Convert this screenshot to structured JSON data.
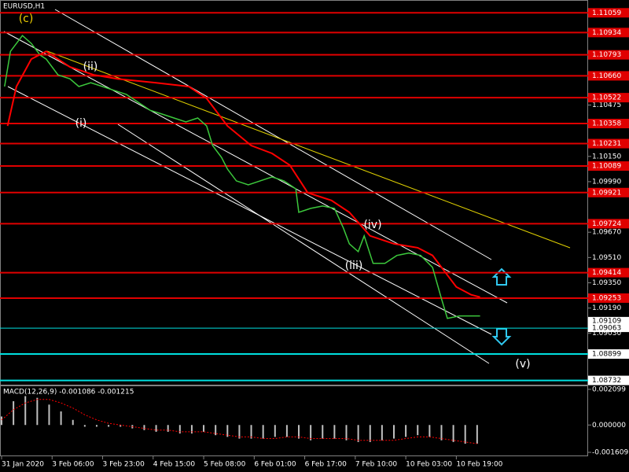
{
  "chart_data": [
    {
      "type": "price",
      "title": "EURUSD,H1",
      "xlim": [
        0,
        197
      ],
      "ylim": [
        1.087,
        1.1114
      ],
      "xticks": [
        {
          "value": 0,
          "label": "31 Jan 2020"
        },
        {
          "value": 17,
          "label": "3 Feb 06:00"
        },
        {
          "value": 34,
          "label": "3 Feb 23:00"
        },
        {
          "value": 51,
          "label": "4 Feb 15:00"
        },
        {
          "value": 68,
          "label": "5 Feb 08:00"
        },
        {
          "value": 85,
          "label": "6 Feb 01:00"
        },
        {
          "value": 102,
          "label": "6 Feb 17:00"
        },
        {
          "value": 119,
          "label": "7 Feb 10:00"
        },
        {
          "value": 136,
          "label": "10 Feb 03:00"
        },
        {
          "value": 153,
          "label": "10 Feb 19:00"
        }
      ],
      "yticks": [
        1.10475,
        {
          "value": 1.1015,
          "label": "1.10150"
        },
        {
          "value": 1.0999,
          "label": "1.09990"
        },
        {
          "value": 1.0967,
          "label": "1.09670"
        },
        {
          "value": 1.0951,
          "label": "1.09510"
        },
        {
          "value": 1.0935,
          "label": "1.09350"
        },
        {
          "value": 1.0919,
          "label": "1.09190"
        },
        {
          "value": 1.0903,
          "label": "1.09030"
        }
      ],
      "series": [
        {
          "color": "#3cc83c",
          "x": [
            1,
            3,
            7,
            10,
            13,
            15,
            19,
            23,
            26,
            30,
            34,
            38,
            42,
            46,
            50,
            54,
            58,
            62,
            66,
            69,
            71,
            74,
            76,
            79,
            83,
            87,
            91,
            95,
            99,
            100,
            104,
            108,
            112,
            115,
            117,
            120,
            122,
            125,
            129,
            133,
            137,
            141,
            145,
            148,
            150,
            154,
            158,
            161
          ],
          "values": [
            1.10592,
            1.10815,
            1.10915,
            1.10865,
            1.10791,
            1.10766,
            1.10666,
            1.10641,
            1.10592,
            1.10616,
            1.10592,
            1.10567,
            1.10542,
            1.10492,
            1.10442,
            1.10418,
            1.10393,
            1.10368,
            1.10393,
            1.10343,
            1.10219,
            1.10144,
            1.1007,
            1.09995,
            1.0997,
            1.09995,
            1.1002,
            1.09995,
            1.09945,
            1.09796,
            1.09821,
            1.09836,
            1.09821,
            1.09697,
            1.09597,
            1.09547,
            1.09647,
            1.09473,
            1.09473,
            1.09523,
            1.09538,
            1.09523,
            1.09448,
            1.09249,
            1.09125,
            1.0914,
            1.0914,
            1.0914
          ]
        },
        {
          "color": "#ff0000",
          "x": [
            2,
            5,
            10,
            15,
            23,
            31,
            39,
            52,
            63,
            69,
            76,
            84,
            91,
            97,
            103,
            111,
            117,
            124,
            132,
            140,
            145,
            149,
            153,
            158,
            161
          ],
          "values": [
            1.10343,
            1.10592,
            1.10766,
            1.10815,
            1.10716,
            1.10666,
            1.10641,
            1.10616,
            1.10592,
            1.10517,
            1.10343,
            1.10219,
            1.10169,
            1.10094,
            1.0992,
            1.09871,
            1.09796,
            1.09647,
            1.09597,
            1.09572,
            1.09523,
            1.09423,
            1.09324,
            1.09274,
            1.09259
          ]
        }
      ],
      "level_color": "#e00000",
      "levels": [
        1.11059,
        1.10934,
        1.10793,
        {
          "value": 1.1066,
          "label": "1.10660"
        },
        1.10522,
        1.10358,
        1.10231,
        1.10089,
        1.09921,
        1.09724,
        1.09414,
        1.09253
      ],
      "support_color": "#00e0e0",
      "support_levels": [
        1.08899,
        1.08732
      ],
      "current_prices": [
        1.09109,
        1.09063
      ],
      "annotations": [
        "(c)",
        "(ii)",
        "(i)",
        "(iii)",
        "(iv)",
        "(v)"
      ]
    },
    {
      "type": "macd",
      "title": "MACD(12,26,9) -0.001086 -0.001215",
      "ylim": [
        -0.00184,
        0.00228
      ],
      "yticks": [
        0.002099,
        {
          "value": 0,
          "label": "0.000000"
        },
        -0.001609
      ],
      "histogram_color": "#c0c0c0",
      "signal_color": "#ff0000",
      "x": [
        0,
        4,
        8,
        12,
        16,
        20,
        24,
        28,
        32,
        36,
        40,
        44,
        48,
        52,
        56,
        60,
        64,
        68,
        72,
        76,
        80,
        84,
        88,
        92,
        96,
        100,
        104,
        108,
        112,
        116,
        120,
        124,
        128,
        132,
        136,
        140,
        144,
        148,
        152,
        156,
        160
      ],
      "histogram": [
        0.0005,
        0.0014,
        0.0017,
        0.0016,
        0.0012,
        0.0008,
        0.0003,
        -0.0001,
        -0.0001,
        -0.0001,
        -0.0001,
        -0.0002,
        -0.0003,
        -0.0004,
        -0.0004,
        -0.0005,
        -0.0005,
        -0.0004,
        -0.0006,
        -0.0007,
        -0.0008,
        -0.0008,
        -0.0008,
        -0.0007,
        -0.0007,
        -0.0008,
        -0.0009,
        -0.0008,
        -0.0008,
        -0.0009,
        -0.001,
        -0.001,
        -0.0009,
        -0.0008,
        -0.0007,
        -0.0006,
        -0.0007,
        -0.0009,
        -0.001,
        -0.0011,
        -0.0011
      ],
      "signal": [
        0.0003,
        0.0009,
        0.0013,
        0.0015,
        0.0015,
        0.0013,
        0.001,
        0.0006,
        0.0003,
        0.0001,
        0,
        -0.0001,
        -0.0002,
        -0.0003,
        -0.0003,
        -0.0004,
        -0.0004,
        -0.0004,
        -0.0005,
        -0.0006,
        -0.0007,
        -0.0007,
        -0.0008,
        -0.0008,
        -0.0007,
        -0.0007,
        -0.0008,
        -0.0008,
        -0.0008,
        -0.0008,
        -0.0009,
        -0.0009,
        -0.0009,
        -0.0009,
        -0.0008,
        -0.0007,
        -0.0007,
        -0.0008,
        -0.0009,
        -0.001,
        -0.0011
      ]
    }
  ]
}
